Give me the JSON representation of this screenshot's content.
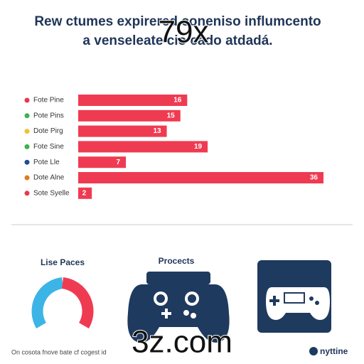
{
  "header": {
    "title_line1": "Rew ctumes expirered coneniso influmcento",
    "title_line2": "a venseleate cio cado atdadá."
  },
  "chart_data": {
    "type": "bar",
    "orientation": "horizontal",
    "categories": [
      "Fote Pine",
      "Pote Pins",
      "Dote Pirg",
      "Fote Sine",
      "Pote Lle",
      "Dote Alne",
      "Sote Syelle"
    ],
    "values": [
      16,
      15,
      13,
      19,
      7,
      36,
      2
    ],
    "color": "#ef3b52",
    "dot_colors": [
      "#e8384f",
      "#3cb44b",
      "#f2c12e",
      "#3cb44b",
      "#1f4e8c",
      "#e07a1f",
      "#e8384f"
    ]
  },
  "panels": [
    "Lise Paces",
    "Procects"
  ],
  "footer": {
    "note": "On cosota fnove bate cf cogest id",
    "logo": "nyttine"
  },
  "watermarks": [
    "79x",
    "3z.com"
  ]
}
